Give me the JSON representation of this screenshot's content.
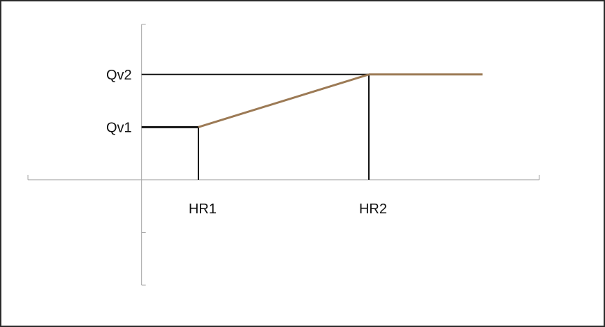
{
  "chart_data": {
    "type": "line",
    "title": "",
    "xlabel": "",
    "ylabel": "",
    "grid": false,
    "legend": "none",
    "x_ticks": [
      {
        "label": "HR1",
        "value": 1
      },
      {
        "label": "HR2",
        "value": 4
      }
    ],
    "y_ticks": [
      {
        "label": "Qv1",
        "value": 1
      },
      {
        "label": "Qv2",
        "value": 2
      }
    ],
    "xlim": [
      -2,
      7
    ],
    "ylim": [
      -2,
      2.95
    ],
    "series": [
      {
        "color": "#9c7a55",
        "points": [
          [
            0,
            1
          ],
          [
            1,
            1
          ],
          [
            4,
            2
          ],
          [
            6,
            2
          ]
        ]
      }
    ],
    "first_segment_color": "#111111",
    "reference_color": "#111111",
    "axis_color": "#a6a6a6"
  }
}
